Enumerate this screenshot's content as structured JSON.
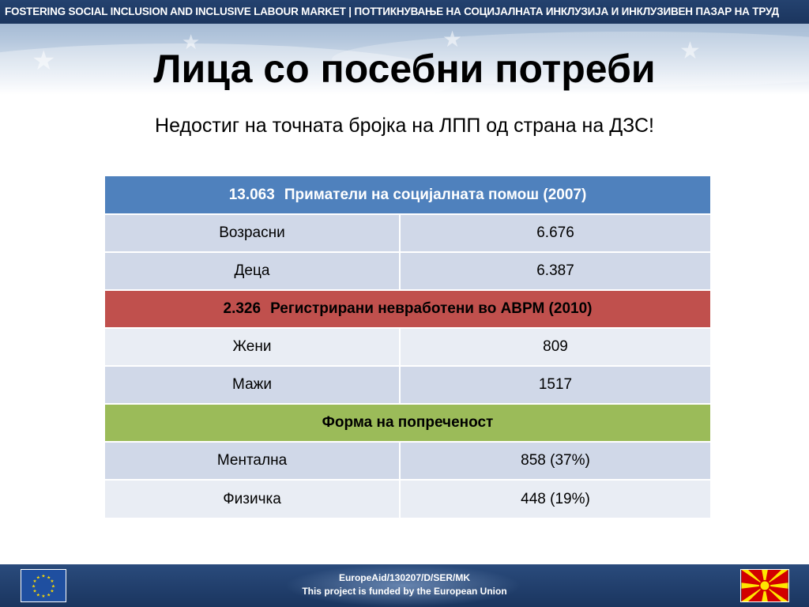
{
  "header": {
    "banner_text": "FOSTERING SOCIAL INCLUSION AND INCLUSIVE LABOUR MARKET | ПОТТИКНУВАЊЕ НА СОЦИЈАЛНАТА ИНКЛУЗИЈА И ИНКЛУЗИВЕН ПАЗАР НА ТРУД"
  },
  "slide": {
    "title": "Лица со посебни потреби",
    "subtitle": "Недостиг на точната бројка на ЛПП од страна на ДЗС!"
  },
  "table": {
    "section1": {
      "number": "13.063",
      "label": "Приматели на социјалната помош (2007)",
      "rows": [
        {
          "label": "Возрасни",
          "value": "6.676"
        },
        {
          "label": "Деца",
          "value": "6.387"
        }
      ]
    },
    "section2": {
      "number": "2.326",
      "label": "Регистрирани невработени во АВРМ (2010)",
      "rows": [
        {
          "label": "Жени",
          "value": "809"
        },
        {
          "label": "Мажи",
          "value": "1517"
        }
      ]
    },
    "section3": {
      "label": "Форма на попреченост",
      "rows": [
        {
          "label": "Ментална",
          "value": "858 (37%)"
        },
        {
          "label": "Физичка",
          "value": "448 (19%)"
        }
      ]
    }
  },
  "footer": {
    "line1": "EuropeAid/130207/D/SER/MK",
    "line2": "This project is funded by the European Union"
  },
  "colors": {
    "section1": "#4f81bd",
    "section2": "#c0504d",
    "section3": "#9bbb59",
    "row_dark": "#d0d8e8",
    "row_light": "#e9edf4"
  },
  "icons": [
    "eu-flag-icon",
    "macedonia-flag-icon"
  ]
}
